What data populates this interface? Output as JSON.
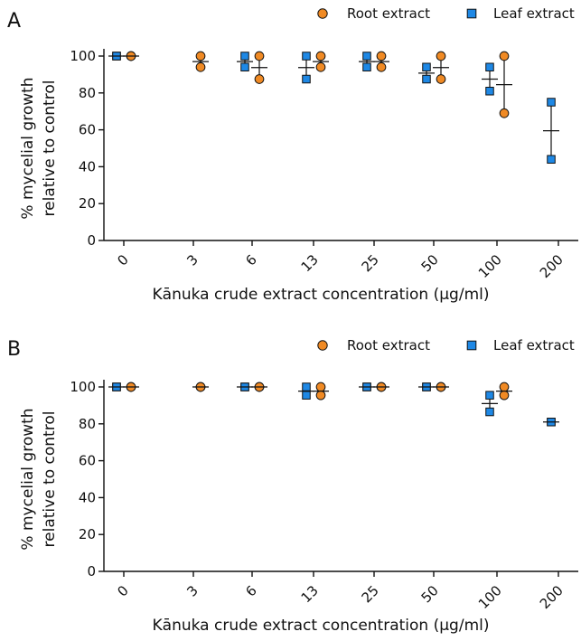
{
  "colors": {
    "root": "#F08A24",
    "leaf": "#1E88E5",
    "stroke": "#111111"
  },
  "chart_data": [
    {
      "type": "scatter",
      "panel_label": "A",
      "xlabel": "Kānuka crude extract concentration (μg/ml)",
      "ylabel_line1": "% mycelial growth",
      "ylabel_line2": "relative to control",
      "ylim": [
        0,
        100
      ],
      "yticks": [
        0,
        20,
        40,
        60,
        80,
        100
      ],
      "categories": [
        "0",
        "3",
        "6",
        "13",
        "25",
        "50",
        "100",
        "200"
      ],
      "legend": [
        {
          "label": "Root extract",
          "series": "root"
        },
        {
          "label": "Leaf extract",
          "series": "leaf"
        }
      ],
      "series": [
        {
          "name": "Root extract",
          "key": "root",
          "marker": "circle",
          "points": [
            {
              "category": "0",
              "values": [
                100,
                100
              ],
              "mean": 100
            },
            {
              "category": "3",
              "values": [
                100,
                94
              ],
              "mean": 97
            },
            {
              "category": "6",
              "values": [
                100,
                87.5
              ],
              "mean": 93.75
            },
            {
              "category": "13",
              "values": [
                100,
                94
              ],
              "mean": 97
            },
            {
              "category": "25",
              "values": [
                100,
                94
              ],
              "mean": 97
            },
            {
              "category": "50",
              "values": [
                100,
                87.5
              ],
              "mean": 93.75
            },
            {
              "category": "100",
              "values": [
                100,
                69
              ],
              "mean": 84.5
            }
          ]
        },
        {
          "name": "Leaf extract",
          "key": "leaf",
          "marker": "square",
          "points": [
            {
              "category": "0",
              "values": [
                100,
                100
              ],
              "mean": 100
            },
            {
              "category": "6",
              "values": [
                100,
                94
              ],
              "mean": 97
            },
            {
              "category": "13",
              "values": [
                100,
                87.5
              ],
              "mean": 93.75
            },
            {
              "category": "25",
              "values": [
                100,
                94
              ],
              "mean": 97
            },
            {
              "category": "50",
              "values": [
                94,
                87.5
              ],
              "mean": 90.75
            },
            {
              "category": "100",
              "values": [
                94,
                81
              ],
              "mean": 87.5
            },
            {
              "category": "200",
              "values": [
                75,
                44
              ],
              "mean": 59.5
            }
          ]
        }
      ]
    },
    {
      "type": "scatter",
      "panel_label": "B",
      "xlabel": "Kānuka crude extract concentration (μg/ml)",
      "ylabel_line1": "% mycelial growth",
      "ylabel_line2": "relative to control",
      "ylim": [
        0,
        100
      ],
      "yticks": [
        0,
        20,
        40,
        60,
        80,
        100
      ],
      "categories": [
        "0",
        "3",
        "6",
        "13",
        "25",
        "50",
        "100",
        "200"
      ],
      "legend": [
        {
          "label": "Root extract",
          "series": "root"
        },
        {
          "label": "Leaf extract",
          "series": "leaf"
        }
      ],
      "series": [
        {
          "name": "Root extract",
          "key": "root",
          "marker": "circle",
          "points": [
            {
              "category": "0",
              "values": [
                100,
                100
              ],
              "mean": 100
            },
            {
              "category": "3",
              "values": [
                100,
                100
              ],
              "mean": 100
            },
            {
              "category": "6",
              "values": [
                100,
                100
              ],
              "mean": 100
            },
            {
              "category": "13",
              "values": [
                100,
                95.5
              ],
              "mean": 97.75
            },
            {
              "category": "25",
              "values": [
                100,
                100
              ],
              "mean": 100
            },
            {
              "category": "50",
              "values": [
                100,
                100
              ],
              "mean": 100
            },
            {
              "category": "100",
              "values": [
                100,
                95.5
              ],
              "mean": 97.75
            }
          ]
        },
        {
          "name": "Leaf extract",
          "key": "leaf",
          "marker": "square",
          "points": [
            {
              "category": "0",
              "values": [
                100,
                100
              ],
              "mean": 100
            },
            {
              "category": "6",
              "values": [
                100,
                100
              ],
              "mean": 100
            },
            {
              "category": "13",
              "values": [
                100,
                95.5
              ],
              "mean": 97.75
            },
            {
              "category": "25",
              "values": [
                100,
                100
              ],
              "mean": 100
            },
            {
              "category": "50",
              "values": [
                100,
                100
              ],
              "mean": 100
            },
            {
              "category": "100",
              "values": [
                95.5,
                86.5
              ],
              "mean": 91
            },
            {
              "category": "200",
              "values": [
                81,
                81
              ],
              "mean": 81
            }
          ]
        }
      ]
    }
  ]
}
